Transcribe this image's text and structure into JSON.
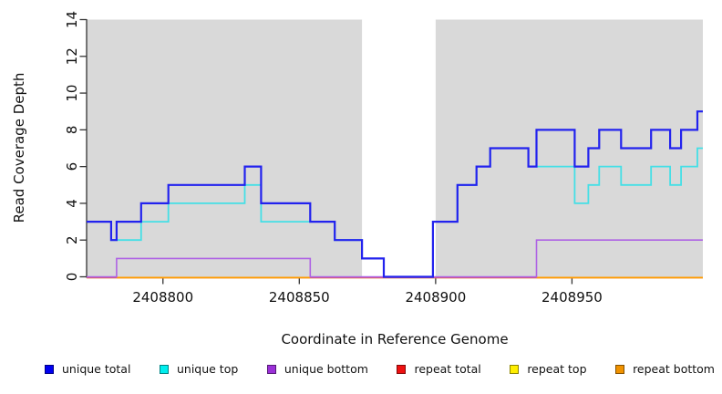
{
  "chart_data": {
    "type": "line",
    "subtype": "step-coverage",
    "title": "",
    "xlabel": "Coordinate in Reference Genome",
    "ylabel": "Read Coverage Depth",
    "xlim": [
      2408772,
      2408998
    ],
    "ylim": [
      0,
      14
    ],
    "x_ticks": [
      2408800,
      2408850,
      2408900,
      2408950
    ],
    "y_ticks": [
      0,
      2,
      4,
      6,
      8,
      10,
      12,
      14
    ],
    "grid": false,
    "background_bands": {
      "color": "#d9d9d9",
      "regions": [
        [
          2408772,
          2408873
        ],
        [
          2408900,
          2408998
        ]
      ]
    },
    "series": [
      {
        "name": "unique total",
        "color": "#2222ee",
        "legend_color": "#0000f0",
        "width": 2.2,
        "steps": [
          [
            2408772,
            3
          ],
          [
            2408781,
            2
          ],
          [
            2408783,
            3
          ],
          [
            2408792,
            4
          ],
          [
            2408802,
            5
          ],
          [
            2408830,
            6
          ],
          [
            2408836,
            4
          ],
          [
            2408854,
            3
          ],
          [
            2408863,
            2
          ],
          [
            2408873,
            1
          ],
          [
            2408881,
            0
          ],
          [
            2408899,
            3
          ],
          [
            2408908,
            5
          ],
          [
            2408915,
            6
          ],
          [
            2408920,
            7
          ],
          [
            2408934,
            6
          ],
          [
            2408937,
            8
          ],
          [
            2408951,
            6
          ],
          [
            2408956,
            7
          ],
          [
            2408960,
            8
          ],
          [
            2408968,
            7
          ],
          [
            2408979,
            8
          ],
          [
            2408986,
            7
          ],
          [
            2408990,
            8
          ],
          [
            2408996,
            9
          ]
        ]
      },
      {
        "name": "unique top",
        "color": "#44dfe6",
        "legend_color": "#00eeee",
        "width": 1.8,
        "steps": [
          [
            2408772,
            3
          ],
          [
            2408781,
            2
          ],
          [
            2408792,
            3
          ],
          [
            2408802,
            4
          ],
          [
            2408830,
            5
          ],
          [
            2408836,
            3
          ],
          [
            2408863,
            2
          ],
          [
            2408873,
            1
          ],
          [
            2408881,
            0
          ],
          [
            2408899,
            3
          ],
          [
            2408908,
            5
          ],
          [
            2408915,
            6
          ],
          [
            2408920,
            7
          ],
          [
            2408934,
            6
          ],
          [
            2408951,
            4
          ],
          [
            2408956,
            5
          ],
          [
            2408960,
            6
          ],
          [
            2408968,
            5
          ],
          [
            2408979,
            6
          ],
          [
            2408986,
            5
          ],
          [
            2408990,
            6
          ],
          [
            2408996,
            7
          ]
        ]
      },
      {
        "name": "unique bottom",
        "color": "#ae62e4",
        "legend_color": "#9b30d8",
        "width": 1.6,
        "steps": [
          [
            2408772,
            0
          ],
          [
            2408783,
            1
          ],
          [
            2408854,
            0
          ],
          [
            2408937,
            2
          ]
        ]
      },
      {
        "name": "repeat total",
        "color": "#d6547a",
        "legend_color": "#ee1111",
        "width": 1.8,
        "steps": [
          [
            2408772,
            0
          ]
        ]
      },
      {
        "name": "repeat top",
        "color": "#ffee00",
        "legend_color": "#ffee00",
        "width": 1.6,
        "steps": [
          [
            2408772,
            0
          ]
        ]
      },
      {
        "name": "repeat bottom",
        "color": "#ff9c00",
        "legend_color": "#f09200",
        "width": 1.8,
        "steps": [
          [
            2408772,
            0
          ]
        ]
      }
    ],
    "legend": {
      "position": "bottom",
      "items": [
        "unique total",
        "unique top",
        "unique bottom",
        "repeat total",
        "repeat top",
        "repeat bottom"
      ]
    }
  }
}
